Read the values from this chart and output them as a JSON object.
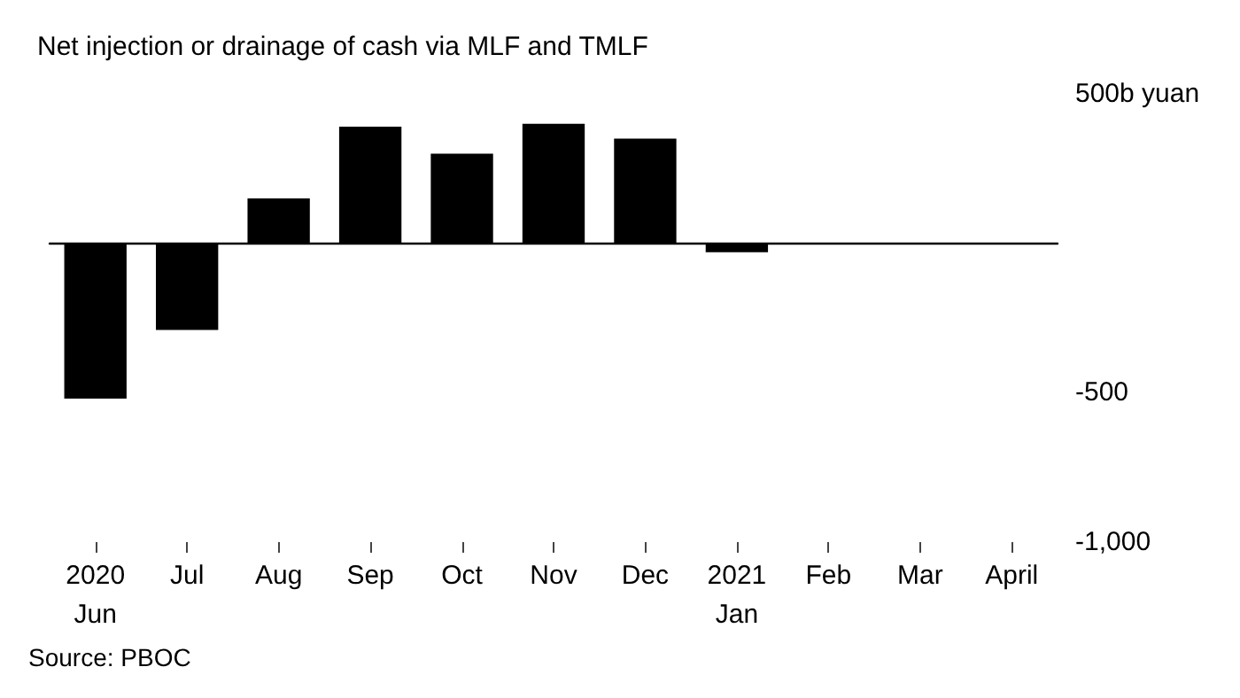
{
  "chart_data": {
    "type": "bar",
    "title": "Net injection or drainage of cash via MLF and TMLF",
    "categories": [
      "2020\nJun",
      "Jul",
      "Aug",
      "Sep",
      "Oct",
      "Nov",
      "Dec",
      "2021\nJan",
      "Feb",
      "Mar",
      "April"
    ],
    "values": [
      -520,
      -290,
      150,
      390,
      300,
      400,
      350,
      -30,
      0,
      0,
      0
    ],
    "color": "#000000",
    "ylim": [
      -1000,
      500
    ],
    "yticks": [
      {
        "value": 500,
        "label": "500b yuan"
      },
      {
        "value": -500,
        "label": "-500"
      },
      {
        "value": -1000,
        "label": "-1,000"
      }
    ],
    "grid": false,
    "annotations": [
      "Source: PBOC"
    ]
  }
}
